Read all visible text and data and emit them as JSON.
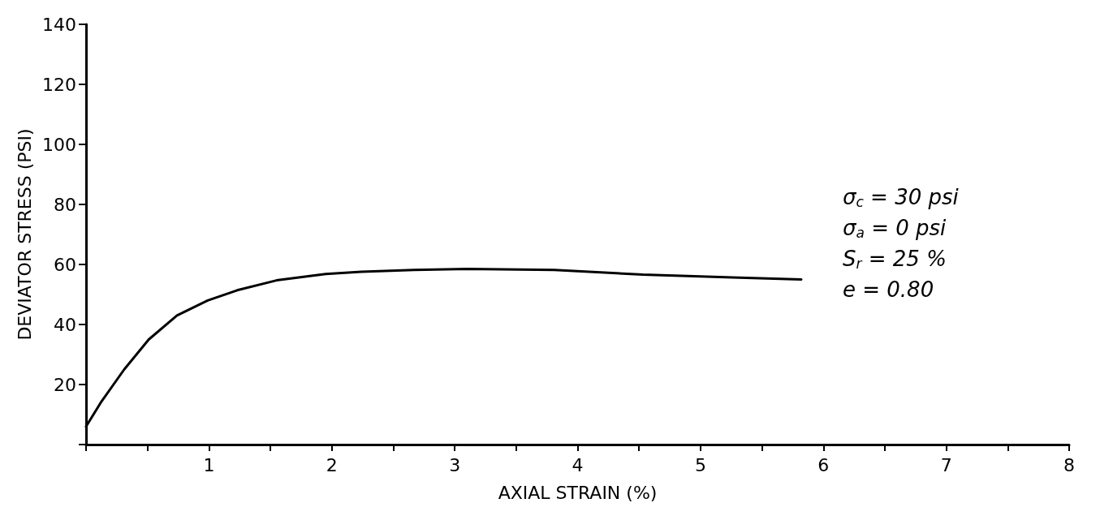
{
  "chart_data": {
    "type": "line",
    "xlabel": "AXIAL STRAIN (%)",
    "ylabel": "DEVIATOR STRESS (PSI)",
    "x": [
      0,
      0.12,
      0.31,
      0.51,
      0.74,
      0.99,
      1.23,
      1.55,
      1.95,
      2.24,
      2.67,
      3.1,
      3.81,
      4.53,
      5.26,
      5.82
    ],
    "series": [
      {
        "color": "#000000",
        "values": [
          6,
          14,
          25,
          35,
          43,
          48,
          51.4,
          54.7,
          56.8,
          57.6,
          58.2,
          58.5,
          58.2,
          56.6,
          55.7,
          55
        ]
      }
    ],
    "xlim": [
      0,
      8
    ],
    "xticks": [
      {
        "value": 0,
        "label": null
      },
      {
        "value": 0.5,
        "label": null
      },
      1,
      {
        "value": 1.5,
        "label": null
      },
      2,
      {
        "value": 2.5,
        "label": null
      },
      3,
      {
        "value": 3.5,
        "label": null
      },
      4,
      {
        "value": 4.5,
        "label": null
      },
      5,
      {
        "value": 5.5,
        "label": null
      },
      6,
      {
        "value": 6.5,
        "label": null
      },
      7,
      {
        "value": 7.5,
        "label": null
      },
      8
    ],
    "ylim": [
      0,
      140
    ],
    "yticks": [
      {
        "value": 0,
        "label": null
      },
      20,
      40,
      60,
      80,
      100,
      120,
      140
    ],
    "grid": false,
    "marker": "none",
    "line_style": "solid",
    "annotations": [
      "σ$_{c}$ = 30 psi",
      "σ$_{a}$ = 0 psi",
      "S$_{r}$ = 25 %",
      "e = 0.80"
    ]
  }
}
